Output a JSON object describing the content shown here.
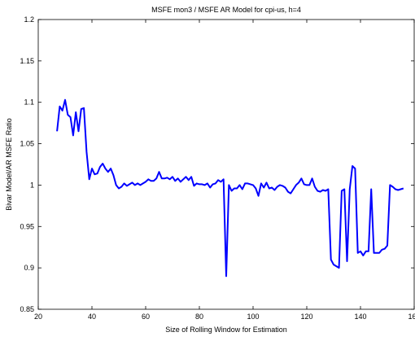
{
  "chart_data": {
    "type": "line",
    "title": "MSFE mon3 / MSFE AR Model for cpi-us, h=4",
    "xlabel": "Size of Rolling Window for Estimation",
    "ylabel": "Bivar Model/AR MSFE Ratio",
    "xlim": [
      20,
      160
    ],
    "ylim": [
      0.85,
      1.2
    ],
    "x_ticks": [
      "20",
      "40",
      "60",
      "80",
      "100",
      "120",
      "140",
      "160"
    ],
    "y_ticks": [
      "0.85",
      "0.9",
      "0.95",
      "1",
      "1.05",
      "1.1",
      "1.15",
      "1.2"
    ],
    "grid": false,
    "line_color": "#0000ff",
    "series": [
      {
        "x": [
          27,
          28,
          29,
          30,
          31,
          32,
          33,
          34,
          35,
          36,
          37,
          38,
          39,
          40,
          41,
          42,
          43,
          44,
          45,
          46,
          47,
          48,
          49,
          50,
          51,
          52,
          53,
          54,
          55,
          56,
          57,
          58,
          59,
          60,
          61,
          62,
          63,
          64,
          65,
          66,
          67,
          68,
          69,
          70,
          71,
          72,
          73,
          74,
          75,
          76,
          77,
          78,
          79,
          80,
          81,
          82,
          83,
          84,
          85,
          86,
          87,
          88,
          89,
          90,
          91,
          92,
          93,
          94,
          95,
          96,
          97,
          98,
          99,
          100,
          101,
          102,
          103,
          104,
          105,
          106,
          107,
          108,
          109,
          110,
          111,
          112,
          113,
          114,
          115,
          116,
          117,
          118,
          119,
          120,
          121,
          122,
          123,
          124,
          125,
          126,
          127,
          128,
          129,
          130,
          131,
          132,
          133,
          134,
          135,
          136,
          137,
          138,
          139,
          140,
          141,
          142,
          143,
          144,
          145,
          146,
          147,
          148,
          149,
          150,
          151,
          152,
          153,
          154,
          155,
          156
        ],
        "y": [
          1.065,
          1.095,
          1.09,
          1.103,
          1.085,
          1.082,
          1.06,
          1.088,
          1.065,
          1.092,
          1.093,
          1.04,
          1.007,
          1.02,
          1.013,
          1.014,
          1.022,
          1.026,
          1.02,
          1.016,
          1.02,
          1.012,
          1.0,
          0.996,
          0.998,
          1.002,
          0.999,
          1.001,
          1.003,
          1.0,
          1.002,
          1.0,
          1.002,
          1.004,
          1.007,
          1.005,
          1.005,
          1.008,
          1.016,
          1.008,
          1.008,
          1.009,
          1.007,
          1.01,
          1.005,
          1.008,
          1.004,
          1.007,
          1.01,
          1.006,
          1.01,
          0.999,
          1.002,
          1.001,
          1.001,
          1.0,
          1.002,
          0.997,
          1.001,
          1.002,
          1.006,
          1.004,
          1.007,
          0.89,
          1.0,
          0.993,
          0.996,
          0.996,
          1.0,
          0.995,
          1.002,
          1.002,
          1.001,
          1.0,
          0.996,
          0.987,
          1.002,
          0.997,
          1.003,
          0.996,
          0.997,
          0.994,
          0.998,
          1.0,
          0.999,
          0.997,
          0.992,
          0.99,
          0.995,
          1.0,
          1.003,
          1.008,
          1.001,
          1.0,
          1.0,
          1.008,
          0.998,
          0.993,
          0.992,
          0.994,
          0.993,
          0.995,
          0.91,
          0.904,
          0.902,
          0.9,
          0.993,
          0.995,
          0.908,
          0.995,
          1.023,
          1.02,
          0.918,
          0.92,
          0.915,
          0.92,
          0.92,
          0.995,
          0.918,
          0.918,
          0.918,
          0.922,
          0.923,
          0.927,
          1.0,
          0.998,
          0.995,
          0.994,
          0.995,
          0.996
        ]
      }
    ]
  }
}
